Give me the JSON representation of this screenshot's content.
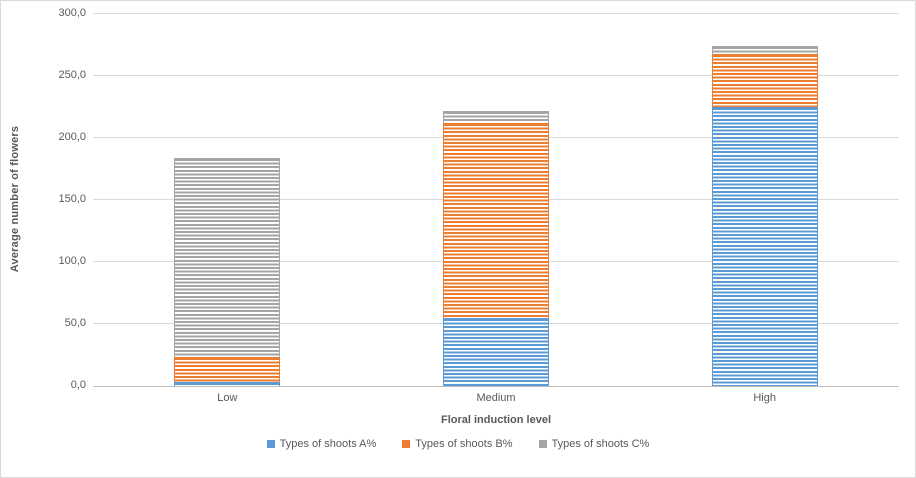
{
  "chart_data": {
    "type": "bar",
    "stacked": true,
    "title": "",
    "xlabel": "Floral induction level",
    "ylabel": "Average number of flowers",
    "categories": [
      "Low",
      "Medium",
      "High"
    ],
    "series": [
      {
        "name": "Types of shoots A%",
        "color": "#5B9BD5",
        "values": [
          3,
          55,
          225
        ]
      },
      {
        "name": "Types of shoots B%",
        "color": "#ED7D31",
        "values": [
          20,
          157,
          43
        ]
      },
      {
        "name": "Types of shoots C%",
        "color": "#A5A5A5",
        "values": [
          161,
          10,
          6
        ]
      }
    ],
    "totals": [
      184,
      222,
      274
    ],
    "ylim": [
      0,
      300
    ],
    "ytick_step": 50,
    "ytick_labels": [
      "0,0",
      "50,0",
      "100,0",
      "150,0",
      "200,0",
      "250,0",
      "300,0"
    ],
    "grid": true,
    "legend_position": "bottom",
    "pattern": "horizontal-stripes",
    "colors": {
      "gridline": "#d9d9d9",
      "axis_line": "#bfbfbf",
      "text": "#595959",
      "background": "#ffffff",
      "border": "#d9d9d9"
    }
  }
}
